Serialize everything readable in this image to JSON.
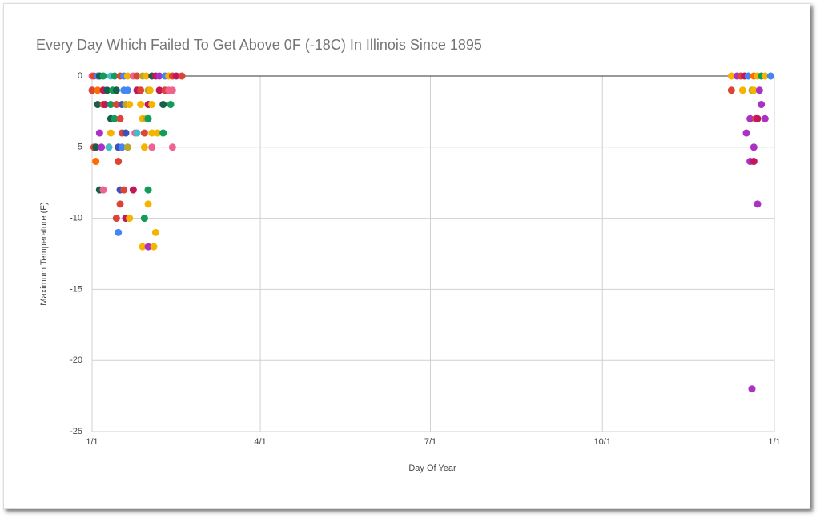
{
  "chart_data": {
    "type": "scatter",
    "title": "Every Day Which Failed To Get Above 0F (-18C) In Illinois Since 1895",
    "x_label": "Day Of Year",
    "y_label": "Maximum Temperature (F)",
    "xlim": [
      1,
      366
    ],
    "xticks": [
      {
        "value": 1,
        "label": "1/1"
      },
      {
        "value": 91,
        "label": "4/1"
      },
      {
        "value": 182,
        "label": "7/1"
      },
      {
        "value": 274,
        "label": "10/1"
      },
      {
        "value": 366,
        "label": "1/1"
      }
    ],
    "ylim": [
      -25,
      0
    ],
    "yticks": [
      0,
      -5,
      -10,
      -15,
      -20,
      -25
    ],
    "grid": true,
    "x": [
      1,
      2,
      4,
      5,
      7,
      11,
      13,
      16,
      18,
      20,
      23,
      25,
      28,
      30,
      33,
      35,
      37,
      40,
      42,
      44,
      46,
      49,
      343,
      346,
      348,
      350,
      352,
      355,
      357,
      359,
      361,
      364,
      1,
      4,
      7,
      9,
      12,
      14,
      18,
      20,
      25,
      27,
      31,
      32,
      37,
      40,
      42,
      44,
      343,
      349,
      354,
      355,
      358,
      4,
      7,
      8,
      11,
      14,
      17,
      19,
      21,
      27,
      31,
      33,
      39,
      43,
      359,
      11,
      13,
      16,
      28,
      30,
      31,
      353,
      356,
      357,
      361,
      5,
      11,
      17,
      19,
      24,
      25,
      29,
      33,
      36,
      39,
      351,
      2,
      3,
      6,
      10,
      15,
      17,
      20,
      29,
      33,
      44,
      355,
      3,
      15,
      353,
      355,
      5,
      7,
      16,
      18,
      23,
      31,
      16,
      31,
      357,
      14,
      19,
      21,
      29,
      15,
      35,
      28,
      31,
      34,
      354
    ],
    "values": [
      0,
      0,
      0,
      0,
      0,
      0,
      0,
      0,
      0,
      0,
      0,
      0,
      0,
      0,
      0,
      0,
      0,
      0,
      0,
      0,
      0,
      0,
      0,
      0,
      0,
      0,
      0,
      0,
      0,
      0,
      0,
      0,
      -1,
      -1,
      -1,
      -1,
      -1,
      -1,
      -1,
      -1,
      -1,
      -1,
      -1,
      -1,
      -1,
      -1,
      -1,
      -1,
      -1,
      -1,
      -1,
      -1,
      -1,
      -2,
      -2,
      -2,
      -2,
      -2,
      -2,
      -2,
      -2,
      -2,
      -2,
      -2,
      -2,
      -2,
      -2,
      -3,
      -3,
      -3,
      -3,
      -3,
      -3,
      -3,
      -3,
      -3,
      -3,
      -4,
      -4,
      -4,
      -4,
      -4,
      -4,
      -4,
      -4,
      -4,
      -4,
      -4,
      -5,
      -5,
      -5,
      -5,
      -5,
      -5,
      -5,
      -5,
      -5,
      -5,
      -5,
      -6,
      -6,
      -6,
      -6,
      -8,
      -8,
      -8,
      -8,
      -8,
      -8,
      -9,
      -9,
      -9,
      -10,
      -10,
      -10,
      -10,
      -11,
      -11,
      -12,
      -12,
      -12,
      -22
    ],
    "colors": [
      "#f06292",
      "#db4437",
      "#4285f4",
      "#185e4a",
      "#0f9d58",
      "#46bdc6",
      "#0f9d58",
      "#db4437",
      "#4285f4",
      "#f4b400",
      "#f06292",
      "#db4437",
      "#b8a72c",
      "#f4b400",
      "#185e4a",
      "#c2185b",
      "#ab30c4",
      "#4285f4",
      "#f4b400",
      "#db4437",
      "#c2185b",
      "#db4437",
      "#f4b400",
      "#ab30c4",
      "#db4437",
      "#c2185b",
      "#4285f4",
      "#ff6d00",
      "#f4b400",
      "#0f9d58",
      "#f4b400",
      "#4285f4",
      "#db4437",
      "#ff6d00",
      "#c2185b",
      "#185e4a",
      "#0f9d58",
      "#185e4a",
      "#4285f4",
      "#4285f4",
      "#c2185b",
      "#db4437",
      "#b8a72c",
      "#f4b400",
      "#c2185b",
      "#db4437",
      "#f06292",
      "#f06292",
      "#db4437",
      "#f4b400",
      "#b8a72c",
      "#f4b400",
      "#ab30c4",
      "#185e4a",
      "#db4437",
      "#c2185b",
      "#0f9d58",
      "#db4437",
      "#3f51b5",
      "#b8a72c",
      "#f4b400",
      "#f4b400",
      "#c2185b",
      "#f4b400",
      "#185e4a",
      "#0f9d58",
      "#ab30c4",
      "#185e4a",
      "#0f9d58",
      "#db4437",
      "#f4b400",
      "#b8a72c",
      "#0f9d58",
      "#ab30c4",
      "#db4437",
      "#c2185b",
      "#ab30c4",
      "#ab30c4",
      "#f4b400",
      "#db4437",
      "#3f51b5",
      "#f06292",
      "#46bdc6",
      "#db4437",
      "#f4b400",
      "#f4b400",
      "#0f9d58",
      "#ab30c4",
      "#db4437",
      "#185e4a",
      "#ab30c4",
      "#46bdc6",
      "#3f51b5",
      "#4285f4",
      "#b8a72c",
      "#f4b400",
      "#f06292",
      "#f06292",
      "#ab30c4",
      "#ff6d00",
      "#db4437",
      "#ab30c4",
      "#c2185b",
      "#185e4a",
      "#f06292",
      "#3f51b5",
      "#db4437",
      "#c2185b",
      "#0f9d58",
      "#db4437",
      "#f4b400",
      "#ab30c4",
      "#db4437",
      "#c2185b",
      "#f4b400",
      "#0f9d58",
      "#4285f4",
      "#f4b400",
      "#f4b400",
      "#ab30c4",
      "#f4b400",
      "#ab30c4"
    ]
  }
}
